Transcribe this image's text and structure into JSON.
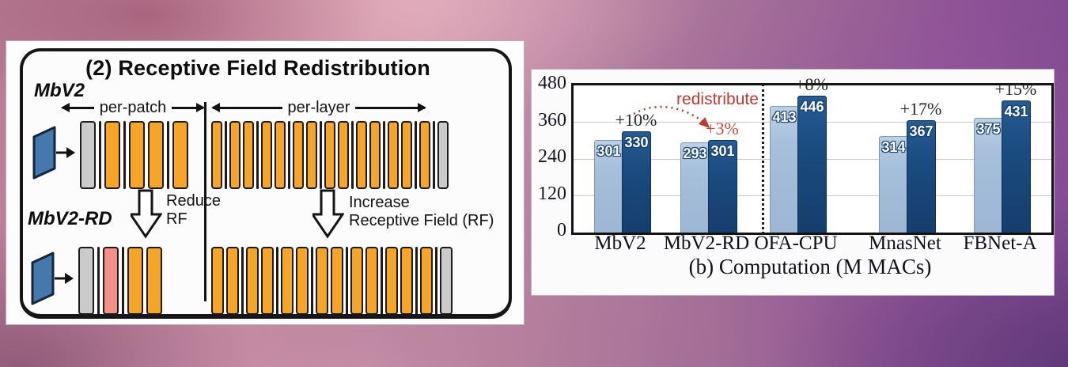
{
  "diagram": {
    "title": "(2) Receptive Field Redistribution",
    "model_top": "MbV2",
    "model_bottom": "MbV2-RD",
    "region_left": "per-patch",
    "region_right": "per-layer",
    "reduce_line1": "Reduce",
    "reduce_line2": "RF",
    "increase_line1": "Increase",
    "increase_line2": "Receptive Field (RF)",
    "rows": {
      "top_perpatch": [
        "g",
        "|",
        "o",
        "|",
        "o",
        "o",
        "|",
        "o"
      ],
      "top_perlayer": [
        "o",
        "|",
        "o",
        "o",
        "|",
        "o",
        "o",
        "|",
        "o",
        "o",
        "|",
        "o",
        "o",
        "|",
        "o",
        "o",
        "|",
        "o",
        "o",
        "|",
        "o",
        "|",
        "g"
      ],
      "bottom_perpatch": [
        "g",
        "|",
        "p",
        "|",
        "o",
        "o"
      ],
      "bottom_perlayer": [
        "o",
        "o",
        "|",
        "o",
        "o",
        "|",
        "o",
        "o",
        "|",
        "o",
        "o",
        "|",
        "o",
        "o",
        "|",
        "o",
        "o",
        "|",
        "o",
        "|",
        "g"
      ]
    }
  },
  "chart_data": {
    "type": "bar",
    "title": "(b) Computation (M MACs)",
    "categories": [
      "MbV2",
      "MbV2-RD",
      "OFA-CPU",
      "MnasNet",
      "FBNet-A"
    ],
    "series": [
      {
        "name": "light-blue-bar",
        "values": [
          301,
          293,
          413,
          314,
          375
        ]
      },
      {
        "name": "dark-blue-bar",
        "values": [
          330,
          301,
          446,
          367,
          431
        ]
      }
    ],
    "percent_labels": [
      {
        "text": "+10%",
        "emphasis": false
      },
      {
        "text": "+3%",
        "emphasis": true
      },
      {
        "text": "+8%",
        "emphasis": false
      },
      {
        "text": "+17%",
        "emphasis": false
      },
      {
        "text": "+15%",
        "emphasis": false
      }
    ],
    "annotation": "redistribute",
    "yticks": [
      0,
      120,
      240,
      360,
      480
    ],
    "ylim": [
      0,
      480
    ],
    "grid": true,
    "group_separator_after": "MbV2-RD",
    "legend_position": "none"
  },
  "colors": {
    "block_orange": "#f6a526",
    "block_gray": "#cbcbcb",
    "block_pink": "#f2918a",
    "input_blue": "#4579ae",
    "bar_light": "#a6bfdb",
    "bar_dark": "#1a4a7f",
    "annotation_red": "#c13a31"
  }
}
